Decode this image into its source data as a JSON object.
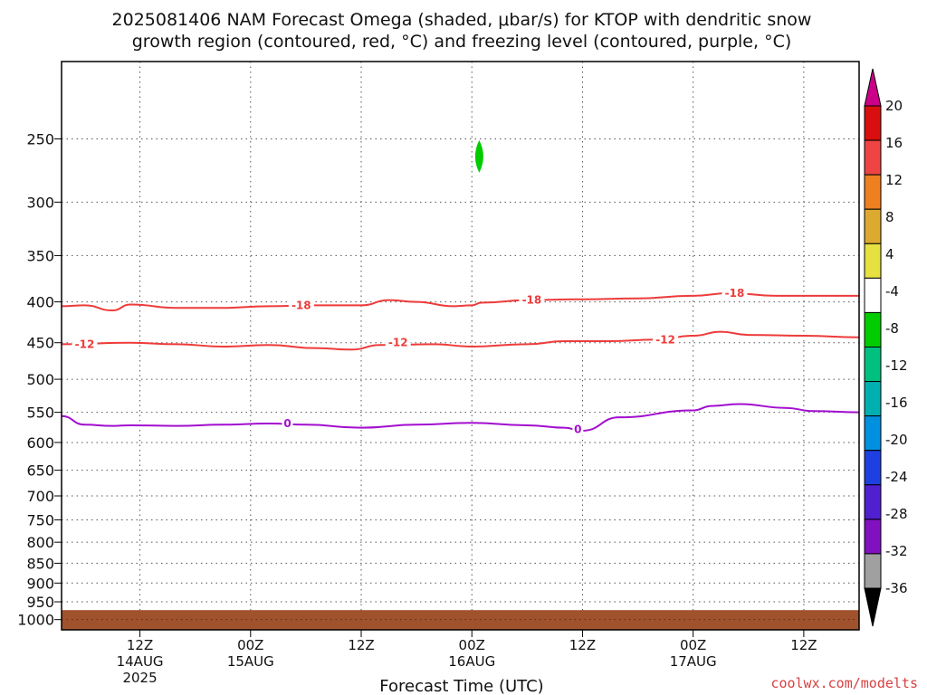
{
  "chart_data": {
    "type": "contour",
    "title_line1": "2025081406 NAM Forecast Omega (shaded, μbar/s) for KTOP with dendritic snow",
    "title_line2": "growth region (contoured, red, °C) and freezing level (contoured, purple, °C)",
    "xlabel": "Forecast Time (UTC)",
    "credit": "coolwx.com/modelts",
    "x_range_hours": [
      -2.5,
      84
    ],
    "y_range_mb": [
      200,
      1030
    ],
    "y_scale": "log",
    "grid": true,
    "y_ticks": [
      250,
      300,
      350,
      400,
      450,
      500,
      550,
      600,
      650,
      700,
      750,
      800,
      850,
      900,
      950,
      1000
    ],
    "x_ticks": [
      {
        "hour": 6,
        "lines": [
          "12Z",
          "14AUG",
          "2025"
        ]
      },
      {
        "hour": 18,
        "lines": [
          "00Z",
          "15AUG"
        ]
      },
      {
        "hour": 30,
        "lines": [
          "12Z"
        ]
      },
      {
        "hour": 42,
        "lines": [
          "00Z",
          "16AUG"
        ]
      },
      {
        "hour": 54,
        "lines": [
          "12Z"
        ]
      },
      {
        "hour": 66,
        "lines": [
          "00Z",
          "17AUG"
        ]
      },
      {
        "hour": 78,
        "lines": [
          "12Z"
        ]
      }
    ],
    "series": [
      {
        "kind": "dendritic-18",
        "color": "#ee3b3b",
        "label": "-18",
        "points": [
          [
            -2.5,
            405
          ],
          [
            0,
            404
          ],
          [
            3,
            410
          ],
          [
            5,
            403
          ],
          [
            10,
            407
          ],
          [
            15,
            407
          ],
          [
            20,
            405
          ],
          [
            25,
            404
          ],
          [
            30,
            404
          ],
          [
            33,
            398
          ],
          [
            36,
            400
          ],
          [
            40,
            405
          ],
          [
            42,
            404
          ],
          [
            43,
            401
          ],
          [
            48,
            398
          ],
          [
            54,
            397
          ],
          [
            60,
            396
          ],
          [
            66,
            393
          ],
          [
            70,
            390
          ],
          [
            75,
            393
          ],
          [
            80,
            393
          ],
          [
            84,
            393
          ]
        ],
        "labels": [
          [
            23.5,
            404
          ],
          [
            48.5,
            398
          ],
          [
            70.5,
            390
          ]
        ]
      },
      {
        "kind": "dendritic-12",
        "color": "#ee3b3b",
        "label": "-12",
        "points": [
          [
            -2.5,
            452
          ],
          [
            5,
            450
          ],
          [
            10,
            452
          ],
          [
            15,
            455
          ],
          [
            20,
            453
          ],
          [
            25,
            457
          ],
          [
            29,
            459
          ],
          [
            32,
            453
          ],
          [
            38,
            452
          ],
          [
            42,
            455
          ],
          [
            48,
            452
          ],
          [
            52,
            448
          ],
          [
            57,
            448
          ],
          [
            62,
            446
          ],
          [
            66,
            441
          ],
          [
            69,
            436
          ],
          [
            72,
            440
          ],
          [
            78,
            441
          ],
          [
            84,
            443
          ]
        ],
        "labels": [
          [
            0,
            452
          ],
          [
            34,
            450
          ],
          [
            63,
            446
          ]
        ]
      },
      {
        "kind": "freezing-level",
        "color": "#a30ecf",
        "label": "0",
        "points": [
          [
            -2.5,
            556
          ],
          [
            0,
            570
          ],
          [
            3,
            572
          ],
          [
            5,
            571
          ],
          [
            10,
            572
          ],
          [
            15,
            570
          ],
          [
            20,
            568
          ],
          [
            24,
            570
          ],
          [
            30,
            575
          ],
          [
            36,
            570
          ],
          [
            42,
            567
          ],
          [
            48,
            571
          ],
          [
            52,
            575
          ],
          [
            54,
            580
          ],
          [
            58,
            558
          ],
          [
            66,
            547
          ],
          [
            68,
            540
          ],
          [
            71,
            537
          ],
          [
            76,
            543
          ],
          [
            79,
            548
          ],
          [
            84,
            550
          ]
        ],
        "labels": [
          [
            22,
            568
          ],
          [
            53.5,
            578
          ]
        ]
      }
    ],
    "omega_shading": [
      {
        "hour": 42.8,
        "pressure_mb": 263,
        "value_range": [
          -8,
          -4
        ],
        "color": "#00cc00"
      }
    ],
    "ground": {
      "top_mb": 973,
      "color": "#a0522d"
    },
    "colorbar": {
      "labels": [
        "20",
        "16",
        "12",
        "8",
        "4",
        "-4",
        "-8",
        "-12",
        "-16",
        "-20",
        "-24",
        "-28",
        "-32",
        "-36"
      ],
      "colors": [
        "#d90f0f",
        "#ee4444",
        "#ee8020",
        "#ddaa30",
        "#e6e040",
        "#ffffff",
        "#00cc00",
        "#00c080",
        "#00b0b0",
        "#0090e0",
        "#1f40e0",
        "#5020d0",
        "#8010c0",
        "#a0a0a0"
      ],
      "over_color": "#cc0088",
      "under_color": "#000000"
    }
  }
}
